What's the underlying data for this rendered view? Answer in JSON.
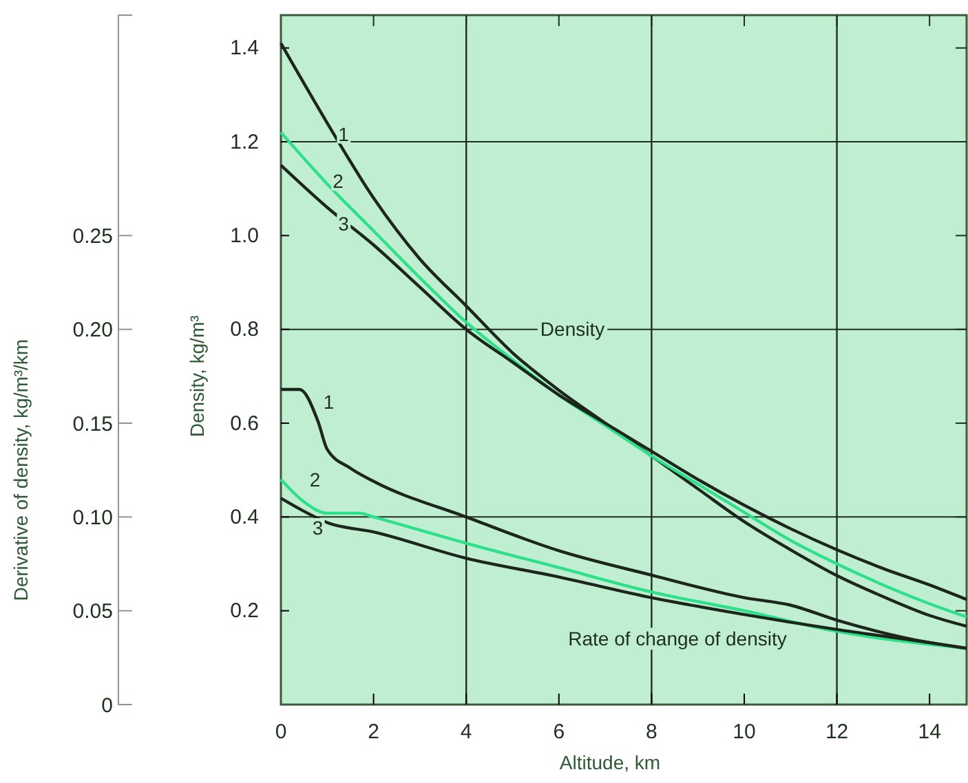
{
  "chart_data": {
    "type": "line",
    "xlabel": "Altitude, km",
    "ylabel": "Density, kg/m³",
    "y2label": "Derivative of density, kg/m³/km",
    "xlim": [
      0,
      14.8
    ],
    "xticks": [
      0,
      2,
      4,
      6,
      8,
      10,
      12,
      14
    ],
    "ylim": [
      0,
      1.47
    ],
    "yticks": [
      0.2,
      0.4,
      0.6,
      0.8,
      {
        "value": 1,
        "label": "1.0"
      },
      1.2,
      1.4
    ],
    "y2lim": [
      0,
      0.3675
    ],
    "y2ticks": [
      0,
      0.05,
      {
        "value": 0.1,
        "label": "0.10"
      },
      0.15,
      {
        "value": 0.2,
        "label": "0.20"
      },
      0.25
    ],
    "grid": true,
    "marker": "none",
    "line_style": "solid",
    "annotations": [
      "Density",
      "Rate of change of density"
    ],
    "series": [
      {
        "name": "1",
        "color": "#1c261c",
        "x": [
          0,
          1,
          2,
          3,
          4,
          5,
          6,
          7,
          8,
          9,
          10,
          11,
          12,
          13,
          14,
          14.8
        ],
        "values": [
          1.41,
          1.24,
          1.08,
          0.95,
          0.85,
          0.75,
          0.67,
          0.6,
          0.53,
          0.46,
          0.39,
          0.33,
          0.275,
          0.23,
          0.19,
          0.167
        ]
      },
      {
        "name": "2",
        "color": "#2ee08a",
        "x": [
          0,
          1,
          2,
          3,
          4,
          5,
          6,
          7,
          8,
          9,
          10,
          11,
          12,
          13,
          14,
          14.8
        ],
        "values": [
          1.22,
          1.11,
          1.01,
          0.91,
          0.815,
          0.735,
          0.66,
          0.595,
          0.53,
          0.47,
          0.41,
          0.35,
          0.3,
          0.255,
          0.215,
          0.187
        ]
      },
      {
        "name": "3",
        "color": "#1c261c",
        "x": [
          0,
          1,
          2,
          3,
          4,
          5,
          6,
          7,
          8,
          9,
          10,
          11,
          12,
          13,
          14,
          14.8
        ],
        "values": [
          1.15,
          1.06,
          0.98,
          0.89,
          0.8,
          0.73,
          0.66,
          0.6,
          0.54,
          0.48,
          0.425,
          0.375,
          0.33,
          0.29,
          0.255,
          0.224
        ]
      },
      {
        "name": "1",
        "color": "#1c261c",
        "axis": "y2",
        "x": [
          0,
          0.4,
          0.8,
          1,
          1.5,
          2,
          4,
          6,
          8,
          10,
          11,
          12,
          14,
          14.8
        ],
        "values": [
          0.168,
          0.168,
          0.151,
          0.136,
          0.126,
          0.119,
          0.1,
          0.082,
          0.069,
          0.057,
          0.053,
          0.045,
          0.033,
          0.03
        ]
      },
      {
        "name": "2",
        "color": "#2ee08a",
        "axis": "y2",
        "x": [
          0,
          0.5,
          1,
          1.7,
          2,
          4,
          6,
          8,
          10,
          12,
          14.8
        ],
        "values": [
          0.12,
          0.108,
          0.102,
          0.102,
          0.1,
          0.086,
          0.073,
          0.06,
          0.05,
          0.039,
          0.03
        ]
      },
      {
        "name": "3",
        "color": "#1c261c",
        "axis": "y2",
        "x": [
          0,
          0.5,
          1,
          2,
          4,
          6,
          8,
          10,
          12,
          14,
          14.8
        ],
        "values": [
          0.11,
          0.103,
          0.097,
          0.092,
          0.078,
          0.068,
          0.057,
          0.048,
          0.04,
          0.033,
          0.03
        ]
      }
    ]
  }
}
